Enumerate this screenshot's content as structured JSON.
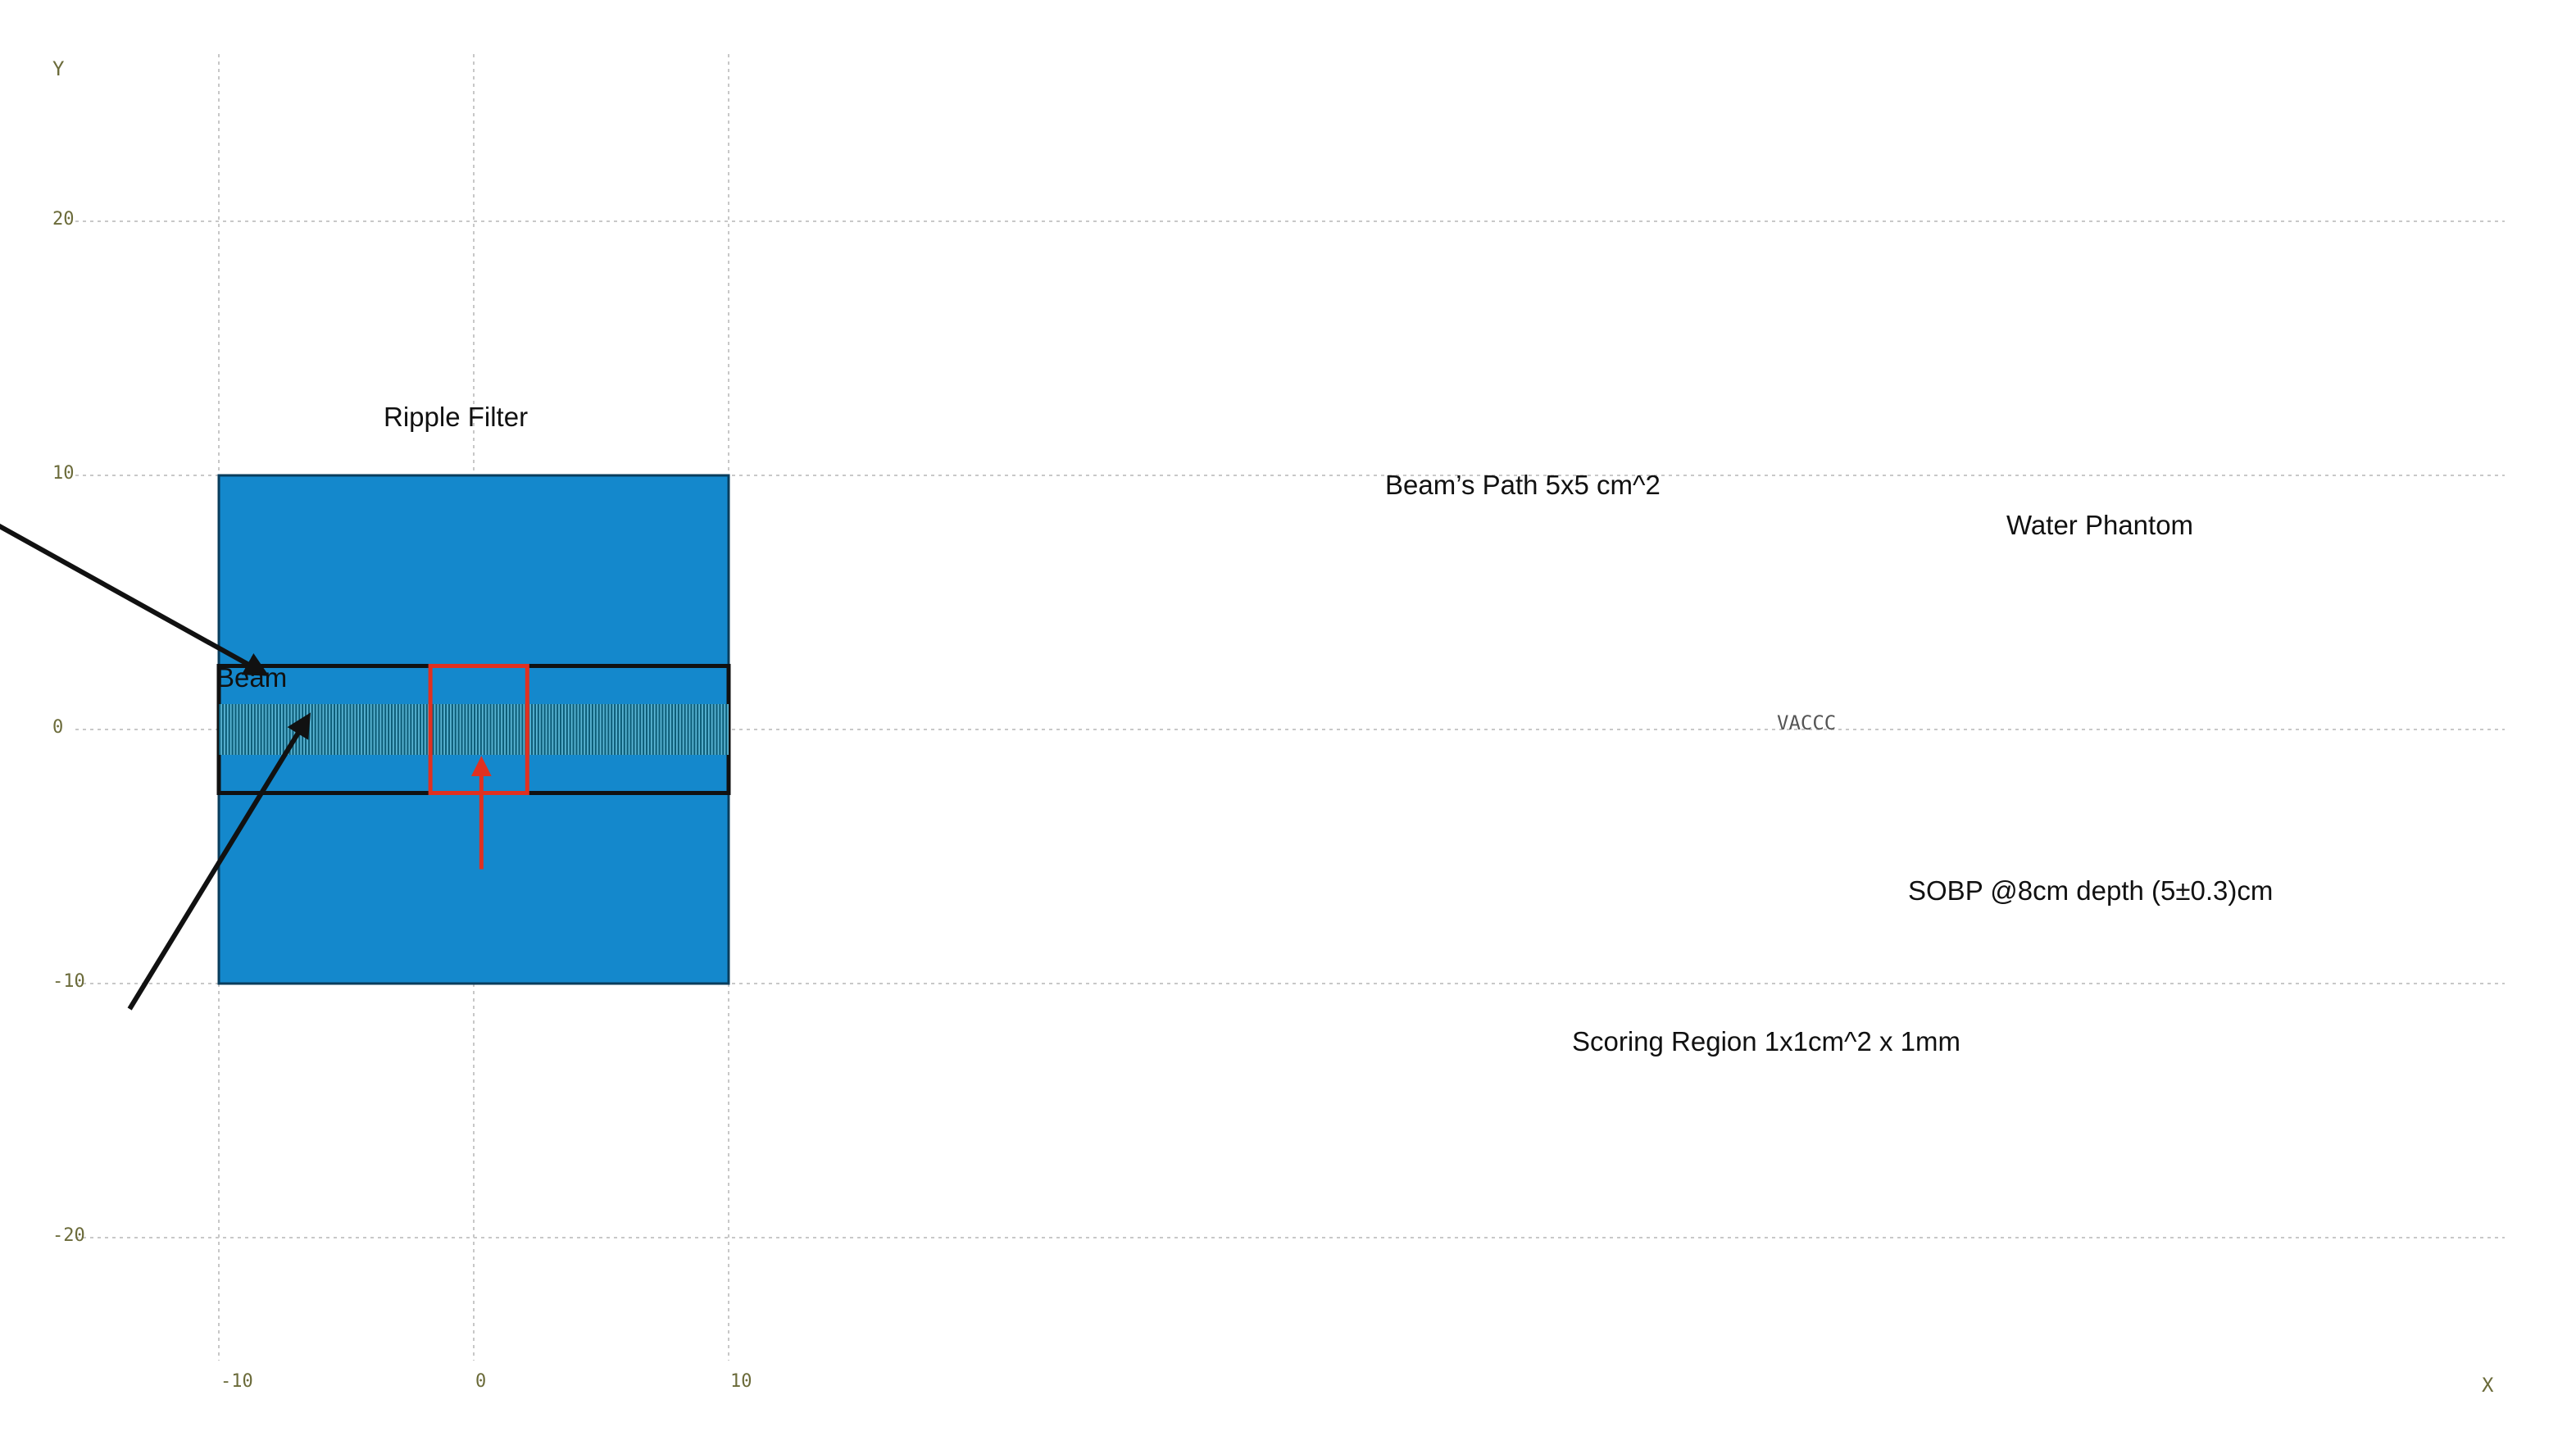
{
  "chart_data": {
    "type": "diagram",
    "xlim": [
      -80,
      10
    ],
    "ylim": [
      -24,
      25
    ],
    "x_ticks": [
      -80,
      -70,
      -60,
      -50,
      -40,
      -30,
      -20,
      -10,
      0,
      10
    ],
    "y_ticks": [
      20,
      10,
      0,
      -10,
      -20
    ],
    "x_axis_label": "X",
    "y_axis_label": "Y",
    "grid": true,
    "colors": {
      "phantom": "#1488cc",
      "scoring_box": "#e03020",
      "grid": "#c8c8c8",
      "filter": "#888888"
    },
    "objects": {
      "ripple_filter": {
        "x": [
          -66,
          -65.7
        ],
        "y": [
          -10,
          10
        ]
      },
      "water_phantom": {
        "x": [
          -10,
          10
        ],
        "y": [
          -10,
          10
        ]
      },
      "beam_path_channel": {
        "x": [
          -10,
          10
        ],
        "y": [
          -2.5,
          2.5
        ]
      },
      "sobp_strip": {
        "x": [
          -10,
          10
        ],
        "y": [
          -1,
          1
        ],
        "slices": 160
      },
      "scoring_region": {
        "x": [
          -1.7,
          2.1
        ],
        "y": [
          -2.5,
          2.5
        ]
      }
    },
    "arrows": [
      {
        "name": "beam",
        "from": [
          -78.5,
          0
        ],
        "to": [
          -65.5,
          0
        ]
      },
      {
        "name": "beams-path",
        "from": [
          -19.5,
          8.5
        ],
        "to": [
          -8.2,
          2.2
        ]
      },
      {
        "name": "scoring-region",
        "from": [
          -13.5,
          -11
        ],
        "to": [
          -6.5,
          0.5
        ]
      },
      {
        "name": "sobp",
        "from": [
          0.3,
          -5.5
        ],
        "to": [
          0.3,
          -1.2
        ]
      }
    ]
  },
  "labels": {
    "ripple_filter": "Ripple Filter",
    "beam": "Beam",
    "water_phantom": "Water Phantom",
    "beams_path": "Beam’s Path 5x5 cm^2",
    "vaccc": "VACCC",
    "sobp": "SOBP @8cm depth (5±0.3)cm",
    "scoring_region": "Scoring Region 1x1cm^2 x 1mm"
  }
}
